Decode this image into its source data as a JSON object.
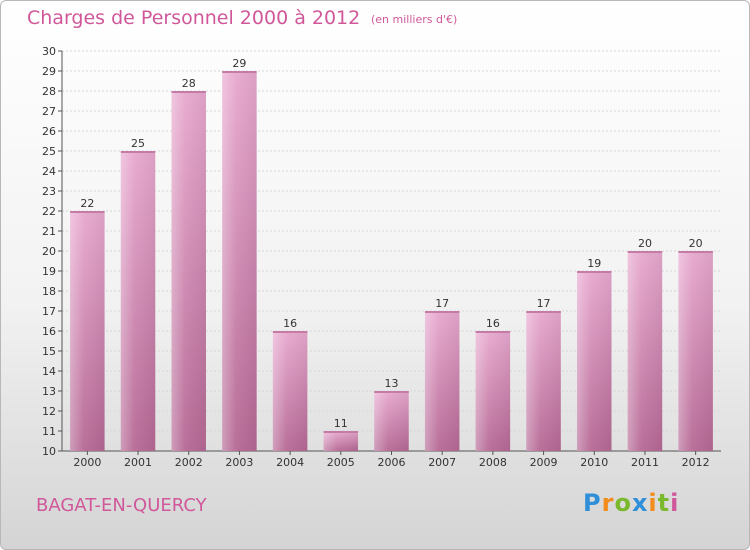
{
  "header": {
    "title": "Charges de Personnel 2000 à 2012",
    "subtitle": "(en milliers d'€)"
  },
  "footer": {
    "commune": "BAGAT-EN-QUERCY",
    "logo_letters": [
      {
        "char": "P",
        "color": "#2f8fd8"
      },
      {
        "char": "r",
        "color": "#f28c1c"
      },
      {
        "char": "o",
        "color": "#7ab82c"
      },
      {
        "char": "x",
        "color": "#2f8fd8"
      },
      {
        "char": "i",
        "color": "#f28c1c"
      },
      {
        "char": "t",
        "color": "#7ab82c"
      },
      {
        "char": "i",
        "color": "#d0589a"
      }
    ]
  },
  "chart_data": {
    "type": "bar",
    "categories": [
      "2000",
      "2001",
      "2002",
      "2003",
      "2004",
      "2005",
      "2006",
      "2007",
      "2008",
      "2009",
      "2010",
      "2011",
      "2012"
    ],
    "values": [
      22,
      25,
      28,
      29,
      16,
      11,
      13,
      17,
      16,
      17,
      19,
      20,
      20
    ],
    "ylim": [
      10,
      30
    ],
    "yticks": [
      10,
      11,
      12,
      13,
      14,
      15,
      16,
      17,
      18,
      19,
      20,
      21,
      22,
      23,
      24,
      25,
      26,
      27,
      28,
      29,
      30
    ],
    "grid": true,
    "bar_color": "#e6a3cb",
    "bar_color_dark": "#b86a98"
  }
}
